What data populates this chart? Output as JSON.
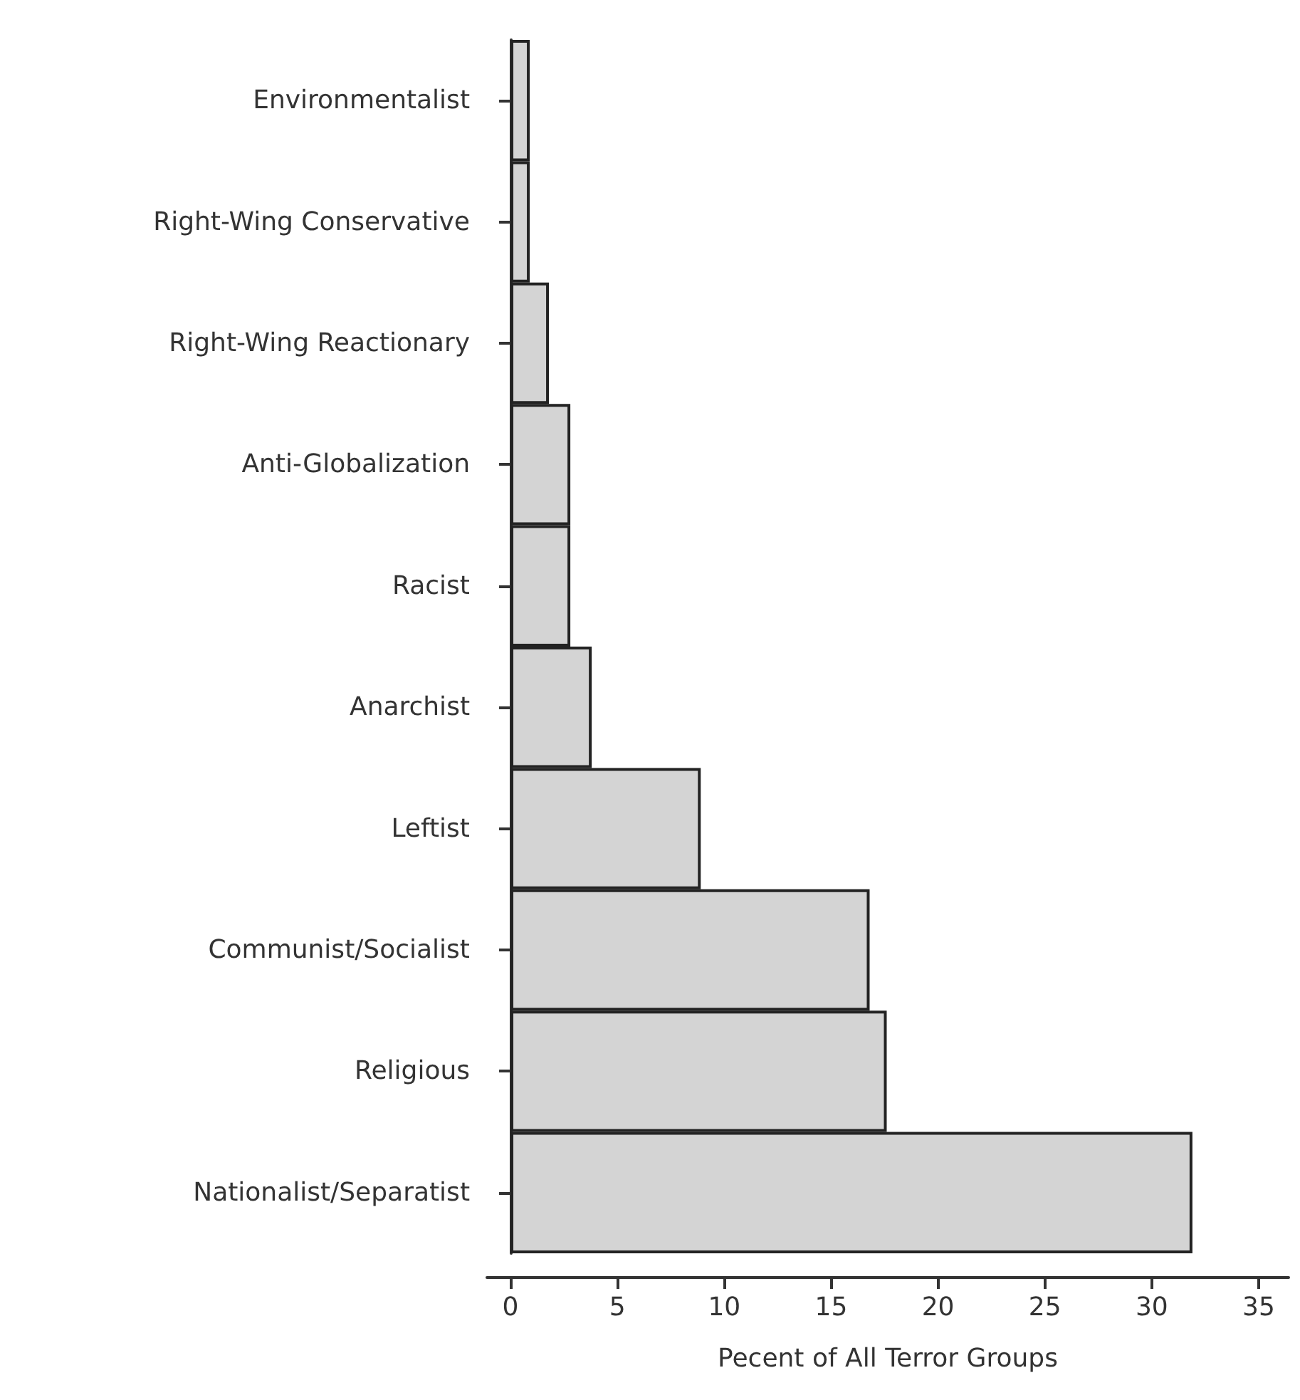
{
  "chart_data": {
    "type": "bar",
    "orientation": "horizontal",
    "xlabel": "Pecent of All Terror Groups",
    "categories": [
      "Environmentalist",
      "Right-Wing Conservative",
      "Right-Wing Reactionary",
      "Anti-Globalization",
      "Racist",
      "Anarchist",
      "Leftist",
      "Communist/Socialist",
      "Religious",
      "Nationalist/Separatist"
    ],
    "values": [
      0.9,
      0.9,
      1.8,
      2.8,
      2.8,
      3.8,
      8.9,
      16.8,
      17.6,
      31.9
    ],
    "color": "#d4d4d4",
    "xlim": [
      -1.1,
      36.4
    ],
    "xticks": [
      0,
      5,
      10,
      15,
      20,
      25,
      30,
      35
    ],
    "grid": false
  }
}
